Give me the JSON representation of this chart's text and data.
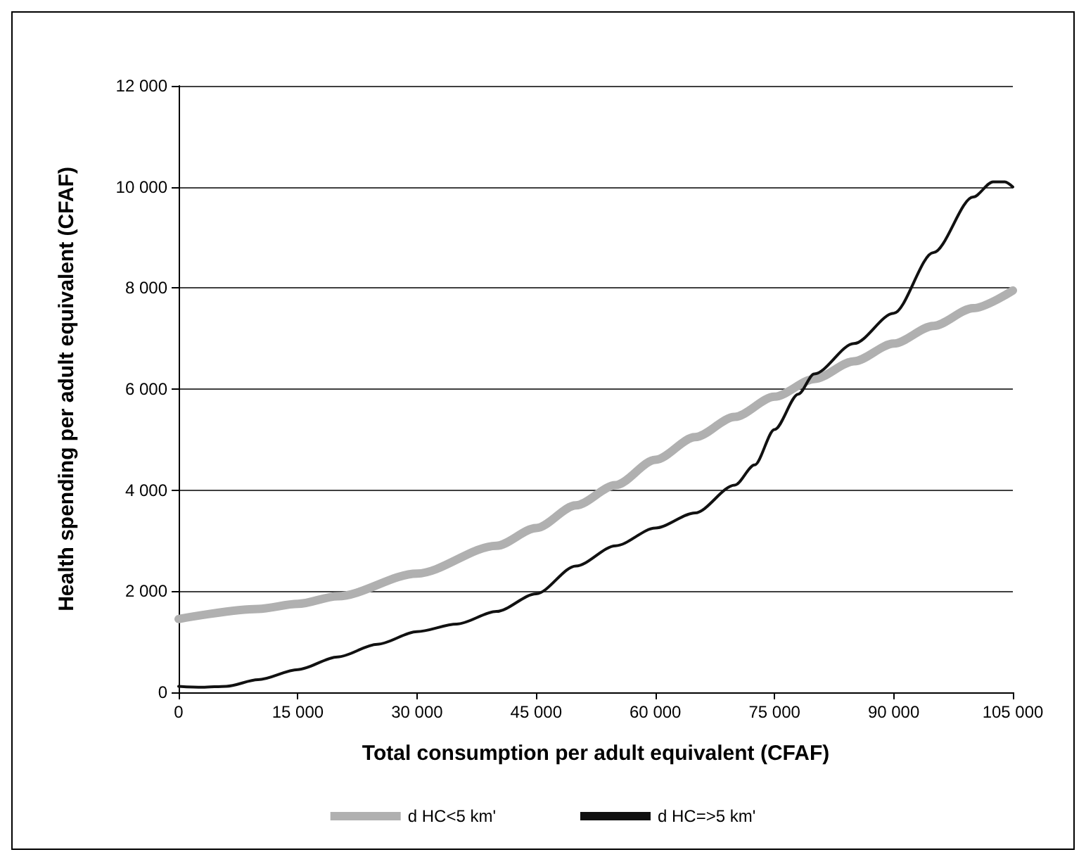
{
  "chart_data": {
    "type": "line",
    "xlabel": "Total consumption per adult equivalent (CFAF)",
    "ylabel": "Health spending per adult equivalent (CFAF)",
    "xlim": [
      0,
      105000
    ],
    "xticks": [
      {
        "value": 0,
        "label": "0"
      },
      {
        "value": 15000,
        "label": "15 000"
      },
      {
        "value": 30000,
        "label": "30 000"
      },
      {
        "value": 45000,
        "label": "45 000"
      },
      {
        "value": 60000,
        "label": "60 000"
      },
      {
        "value": 75000,
        "label": "75 000"
      },
      {
        "value": 90000,
        "label": "90 000"
      },
      {
        "value": 105000,
        "label": "105 000"
      }
    ],
    "ylim": [
      0,
      12000
    ],
    "yticks": [
      {
        "value": 0,
        "label": "0"
      },
      {
        "value": 2000,
        "label": "2 000"
      },
      {
        "value": 4000,
        "label": "4 000"
      },
      {
        "value": 6000,
        "label": "6 000"
      },
      {
        "value": 8000,
        "label": "8 000"
      },
      {
        "value": 10000,
        "label": "10 000"
      },
      {
        "value": 12000,
        "label": "12 000"
      }
    ],
    "grid": "y",
    "legend": "bottom",
    "marker": "none",
    "line_style": "solid",
    "series": [
      {
        "name": "d HC<5 km'",
        "color": "#b0b0b0",
        "x": [
          0,
          10000,
          15000,
          20000,
          30000,
          40000,
          45000,
          50000,
          55000,
          60000,
          65000,
          70000,
          75000,
          80000,
          85000,
          90000,
          95000,
          100000,
          105000
        ],
        "values": [
          1450,
          1650,
          1750,
          1900,
          2350,
          2900,
          3250,
          3700,
          4100,
          4600,
          5050,
          5450,
          5850,
          6200,
          6550,
          6900,
          7250,
          7600,
          7950
        ]
      },
      {
        "name": "d HC=>5 km'",
        "color": "#111111",
        "x": [
          0,
          3000,
          6000,
          10000,
          15000,
          20000,
          25000,
          30000,
          35000,
          40000,
          45000,
          50000,
          55000,
          60000,
          65000,
          70000,
          72500,
          75000,
          78000,
          80000,
          85000,
          90000,
          95000,
          100000,
          102500,
          104000,
          105000
        ],
        "values": [
          120,
          100,
          120,
          250,
          450,
          700,
          950,
          1200,
          1350,
          1600,
          1950,
          2500,
          2900,
          3250,
          3550,
          4100,
          4500,
          5200,
          5900,
          6300,
          6900,
          7500,
          8700,
          9800,
          10100,
          10100,
          10000
        ]
      }
    ]
  }
}
